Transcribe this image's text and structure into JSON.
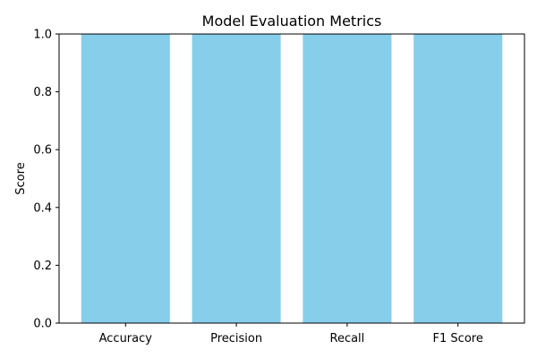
{
  "chart_data": {
    "type": "bar",
    "title": "Model Evaluation Metrics",
    "xlabel": "",
    "ylabel": "Score",
    "categories": [
      "Accuracy",
      "Precision",
      "Recall",
      "F1 Score"
    ],
    "values": [
      1.0,
      1.0,
      1.0,
      1.0
    ],
    "ylim": [
      0.0,
      1.0
    ],
    "yticks": [
      0.0,
      0.2,
      0.4,
      0.6,
      0.8,
      1.0
    ],
    "ytick_labels": [
      "0.0",
      "0.2",
      "0.4",
      "0.6",
      "0.8",
      "1.0"
    ],
    "grid": false,
    "legend": "none",
    "bar_color": "#87CEEB",
    "axis_color": "#000000"
  }
}
